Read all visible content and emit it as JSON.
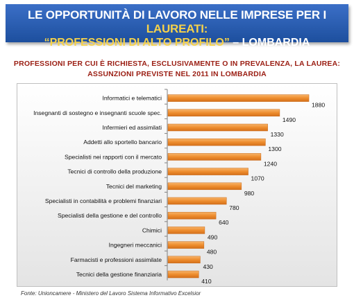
{
  "banner": {
    "line1_main": "LE OPPORTUNITÀ DI LAVORO NELLE IMPRESE PER I ",
    "line1_highlight": "LAUREATI:",
    "line2_highlight": "“PROFESSIONI DI ALTO PROFILO”",
    "line2_main": " – LOMBARDIA"
  },
  "subtitle": {
    "line1": "PROFESSIONI PER CUI È RICHIESTA, ESCLUSIVAMENTE O IN PREVALENZA, LA LAUREA:",
    "line2": "ASSUNZIONI PREVISTE NEL 2011 IN LOMBARDIA"
  },
  "footer": "Fonte: Unioncamere - Ministero del Lavoro Sistema Informativo Excelsior",
  "colors": {
    "banner": "#2a5db0",
    "highlight": "#f6d24a",
    "subtitle": "#9a1d12",
    "bar": "#ee8d2e"
  },
  "chart_data": {
    "type": "bar",
    "orientation": "horizontal",
    "categories": [
      "Informatici e telematici",
      "Insegnanti di sostegno e insegnanti scuole spec.",
      "Infermieri ed assimilati",
      "Addetti allo sportello bancario",
      "Specialisti nei rapporti con il mercato",
      "Tecnici di controllo della produzione",
      "Tecnici del marketing",
      "Specialisti in contabilità e problemi finanziari",
      "Specialisti della gestione e del controllo",
      "Chimici",
      "Ingegneri meccanici",
      "Farmacisti e professioni assimilate",
      "Tecnici della gestione finanziaria"
    ],
    "values": [
      1880,
      1490,
      1330,
      1300,
      1240,
      1070,
      980,
      780,
      640,
      490,
      480,
      430,
      410
    ],
    "xlim": [
      0,
      2000
    ],
    "grid": false,
    "legend": "none"
  }
}
